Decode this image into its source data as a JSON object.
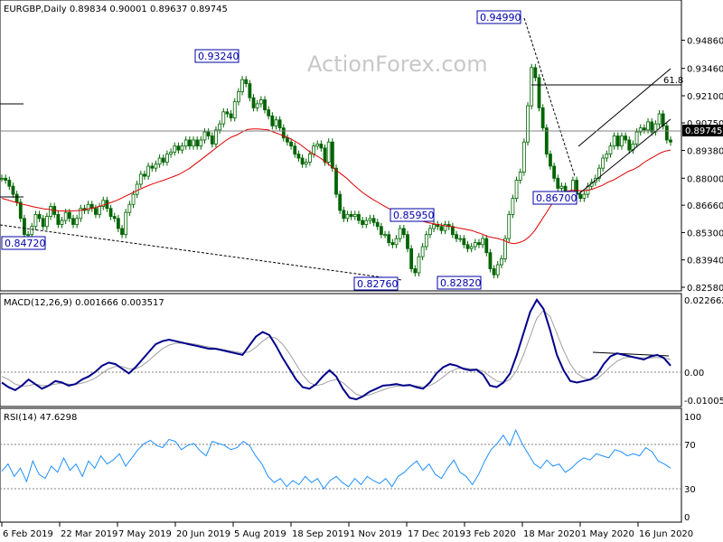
{
  "header": {
    "main": "EURGBP,Daily  0.89834 0.90001 0.89637 0.89745",
    "macd": "MACD(12,26,9) 0.001666 0.003517",
    "rsi": "RSI(14) 47.6298"
  },
  "watermark": "ActionForex.com",
  "colors": {
    "candle": "#006400",
    "ma": "#e00000",
    "macd": "#00008b",
    "signal": "#a0a0a0",
    "rsi": "#1e90ff",
    "price_box": "#000000"
  },
  "chart_data": [
    {
      "type": "candlestick",
      "title": "EURGBP,Daily",
      "ohlc_last": {
        "open": 0.89834,
        "high": 0.90001,
        "low": 0.89637,
        "close": 0.89745
      },
      "current_price": "0.89745",
      "ylim": [
        0.8258,
        0.965
      ],
      "y_ticks": [
        "0.94860",
        "0.93460",
        "0.92100",
        "0.90750",
        "0.89380",
        "0.88000",
        "0.86660",
        "0.85300",
        "0.83940",
        "0.82580"
      ],
      "x_ticks": [
        "6 Feb 2019",
        "22 Mar 2019",
        "7 May 2019",
        "20 Jun 2019",
        "5 Aug 2019",
        "18 Sep 2019",
        "1 Nov 2019",
        "17 Dec 2019",
        "3 Feb 2020",
        "18 Mar 2020",
        "1 May 2020",
        "16 Jun 2020"
      ],
      "close_series": [
        0.88,
        0.879,
        0.876,
        0.872,
        0.868,
        0.86,
        0.852,
        0.852,
        0.856,
        0.862,
        0.86,
        0.856,
        0.861,
        0.866,
        0.862,
        0.857,
        0.859,
        0.863,
        0.86,
        0.857,
        0.86,
        0.865,
        0.864,
        0.867,
        0.865,
        0.862,
        0.866,
        0.869,
        0.865,
        0.861,
        0.86,
        0.855,
        0.852,
        0.863,
        0.867,
        0.872,
        0.877,
        0.882,
        0.881,
        0.886,
        0.885,
        0.887,
        0.89,
        0.888,
        0.892,
        0.893,
        0.896,
        0.894,
        0.896,
        0.899,
        0.896,
        0.899,
        0.896,
        0.899,
        0.903,
        0.901,
        0.897,
        0.904,
        0.907,
        0.913,
        0.912,
        0.91,
        0.918,
        0.923,
        0.929,
        0.927,
        0.92,
        0.915,
        0.917,
        0.919,
        0.914,
        0.911,
        0.906,
        0.909,
        0.905,
        0.9,
        0.898,
        0.896,
        0.892,
        0.89,
        0.887,
        0.888,
        0.892,
        0.896,
        0.897,
        0.895,
        0.888,
        0.898,
        0.885,
        0.872,
        0.864,
        0.86,
        0.862,
        0.861,
        0.862,
        0.859,
        0.857,
        0.859,
        0.86,
        0.858,
        0.856,
        0.852,
        0.852,
        0.848,
        0.847,
        0.85,
        0.855,
        0.852,
        0.845,
        0.835,
        0.833,
        0.841,
        0.846,
        0.852,
        0.855,
        0.857,
        0.856,
        0.854,
        0.857,
        0.856,
        0.852,
        0.85,
        0.85,
        0.847,
        0.845,
        0.846,
        0.848,
        0.847,
        0.85,
        0.843,
        0.835,
        0.832,
        0.837,
        0.84,
        0.85,
        0.862,
        0.87,
        0.879,
        0.883,
        0.898,
        0.916,
        0.935,
        0.93,
        0.915,
        0.905,
        0.892,
        0.886,
        0.88,
        0.875,
        0.876,
        0.872,
        0.872,
        0.879,
        0.872,
        0.87,
        0.872,
        0.876,
        0.878,
        0.88,
        0.885,
        0.89,
        0.892,
        0.896,
        0.901,
        0.896,
        0.901,
        0.899,
        0.894,
        0.897,
        0.903,
        0.905,
        0.904,
        0.908,
        0.903,
        0.907,
        0.912,
        0.906,
        0.899,
        0.898
      ],
      "ma_series": [
        0.87,
        0.8693,
        0.8685,
        0.8678,
        0.867,
        0.8665,
        0.8658,
        0.8653,
        0.8648,
        0.8645,
        0.864,
        0.8638,
        0.8637,
        0.8637,
        0.8638,
        0.864,
        0.8645,
        0.865,
        0.8655,
        0.8663,
        0.8672,
        0.868,
        0.869,
        0.8702,
        0.8715,
        0.8727,
        0.874,
        0.8752,
        0.8763,
        0.8773,
        0.8782,
        0.879,
        0.88,
        0.881,
        0.882,
        0.8835,
        0.885,
        0.887,
        0.889,
        0.891,
        0.893,
        0.895,
        0.897,
        0.899,
        0.9005,
        0.9015,
        0.903,
        0.9042,
        0.9045,
        0.9045,
        0.9043,
        0.904,
        0.903,
        0.902,
        0.901,
        0.9,
        0.8985,
        0.897,
        0.895,
        0.893,
        0.8915,
        0.89,
        0.888,
        0.886,
        0.884,
        0.882,
        0.88,
        0.8775,
        0.8752,
        0.873,
        0.8712,
        0.8695,
        0.868,
        0.8665,
        0.865,
        0.8638,
        0.8625,
        0.8615,
        0.8605,
        0.86,
        0.859,
        0.8583,
        0.8577,
        0.8572,
        0.8568,
        0.8563,
        0.856,
        0.8555,
        0.855,
        0.8545,
        0.854,
        0.853,
        0.8522,
        0.851,
        0.8505,
        0.85,
        0.8492,
        0.848,
        0.8475,
        0.848,
        0.849,
        0.851,
        0.854,
        0.858,
        0.862,
        0.866,
        0.87,
        0.872,
        0.8735,
        0.874,
        0.874,
        0.8738,
        0.874,
        0.8745,
        0.8755,
        0.8765,
        0.878,
        0.879,
        0.8805,
        0.882,
        0.8835,
        0.8845,
        0.886,
        0.888,
        0.8895,
        0.891,
        0.8925,
        0.8935,
        0.894
      ]
    },
    {
      "type": "line",
      "title": "MACD(12,26,9)",
      "macd": 0.001666,
      "signal": 0.003517,
      "ylim": [
        -0.010052,
        0.022662
      ],
      "y_ticks": [
        "0.022662",
        "0.00",
        "-0.010052"
      ],
      "macd_series": [
        -0.004,
        -0.0055,
        -0.0065,
        -0.005,
        -0.003,
        -0.0045,
        -0.006,
        -0.005,
        -0.0035,
        -0.004,
        -0.005,
        -0.0045,
        -0.003,
        -0.002,
        -0.0005,
        0.0015,
        0.0025,
        0.002,
        0.0005,
        -0.001,
        0.001,
        0.0035,
        0.006,
        0.0085,
        0.0095,
        0.01,
        0.0095,
        0.009,
        0.0085,
        0.008,
        0.0075,
        0.007,
        0.007,
        0.0065,
        0.006,
        0.0055,
        0.005,
        0.008,
        0.011,
        0.0125,
        0.0115,
        0.008,
        0.004,
        0.0005,
        -0.003,
        -0.0055,
        -0.006,
        -0.0045,
        -0.002,
        0.0,
        -0.002,
        -0.006,
        -0.009,
        -0.0095,
        -0.0085,
        -0.007,
        -0.006,
        -0.005,
        -0.0048,
        -0.0045,
        -0.005,
        -0.0048,
        -0.0055,
        -0.006,
        -0.004,
        -0.001,
        0.001,
        0.002,
        0.0015,
        0.0005,
        0.0,
        0.0002,
        -0.0015,
        -0.005,
        -0.0055,
        -0.004,
        -0.001,
        0.005,
        0.012,
        0.019,
        0.023,
        0.02,
        0.013,
        0.005,
        0.0,
        -0.0035,
        -0.004,
        -0.0035,
        -0.003,
        -0.0015,
        0.002,
        0.0045,
        0.0055,
        0.005,
        0.0045,
        0.004,
        0.0035,
        0.0045,
        0.005,
        0.004,
        0.0015
      ],
      "signal_series": [
        -0.002,
        -0.003,
        -0.0045,
        -0.0052,
        -0.005,
        -0.0045,
        -0.005,
        -0.005,
        -0.0045,
        -0.0042,
        -0.0045,
        -0.0046,
        -0.0042,
        -0.0035,
        -0.0025,
        -0.001,
        0.0005,
        0.0012,
        0.0012,
        0.0005,
        0.0005,
        0.0015,
        0.0032,
        0.0052,
        0.007,
        0.0082,
        0.0088,
        0.0089,
        0.0088,
        0.0085,
        0.008,
        0.0076,
        0.0072,
        0.0068,
        0.0064,
        0.006,
        0.0056,
        0.006,
        0.0075,
        0.0095,
        0.011,
        0.0105,
        0.0085,
        0.0055,
        0.002,
        -0.0015,
        -0.004,
        -0.005,
        -0.0045,
        -0.0035,
        -0.003,
        -0.004,
        -0.006,
        -0.0078,
        -0.0085,
        -0.008,
        -0.0072,
        -0.0064,
        -0.0057,
        -0.0052,
        -0.005,
        -0.0049,
        -0.0051,
        -0.0054,
        -0.005,
        -0.0038,
        -0.0022,
        -0.0005,
        0.0005,
        0.0008,
        0.0005,
        0.0003,
        -0.0003,
        -0.002,
        -0.0035,
        -0.004,
        -0.003,
        0.0,
        0.005,
        0.011,
        0.017,
        0.0195,
        0.0175,
        0.012,
        0.0065,
        0.002,
        -0.001,
        -0.0025,
        -0.003,
        -0.0028,
        -0.001,
        0.0012,
        0.003,
        0.004,
        0.0043,
        0.0042,
        0.004,
        0.004,
        0.0042,
        0.004,
        0.0035
      ]
    },
    {
      "type": "line",
      "title": "RSI(14)",
      "value": 47.6298,
      "ylim": [
        0,
        100
      ],
      "y_ticks": [
        "100",
        "70",
        "30",
        "0"
      ],
      "levels": [
        70,
        30
      ],
      "rsi_series": [
        45,
        52,
        40,
        48,
        35,
        55,
        42,
        38,
        50,
        44,
        58,
        46,
        52,
        40,
        55,
        48,
        60,
        52,
        56,
        62,
        50,
        58,
        66,
        72,
        75,
        70,
        68,
        76,
        74,
        66,
        70,
        72,
        65,
        60,
        74,
        72,
        70,
        66,
        68,
        74,
        70,
        60,
        52,
        40,
        34,
        38,
        30,
        36,
        32,
        40,
        34,
        38,
        28,
        36,
        40,
        34,
        30,
        38,
        32,
        40,
        36,
        33,
        38,
        30,
        40,
        44,
        50,
        55,
        46,
        52,
        42,
        38,
        48,
        56,
        44,
        40,
        32,
        42,
        55,
        66,
        72,
        80,
        70,
        85,
        72,
        62,
        52,
        48,
        56,
        50,
        52,
        44,
        48,
        54,
        58,
        56,
        62,
        60,
        58,
        66,
        64,
        60,
        62,
        60,
        68,
        64,
        55,
        52,
        48
      ],
      "current": 47.6298
    }
  ],
  "annotations": {
    "price_labels": [
      "0.94990",
      "0.93240",
      "0.84720",
      "0.85950",
      "0.82760",
      "0.82820",
      "0.86700"
    ],
    "fib_label": "61.8"
  }
}
